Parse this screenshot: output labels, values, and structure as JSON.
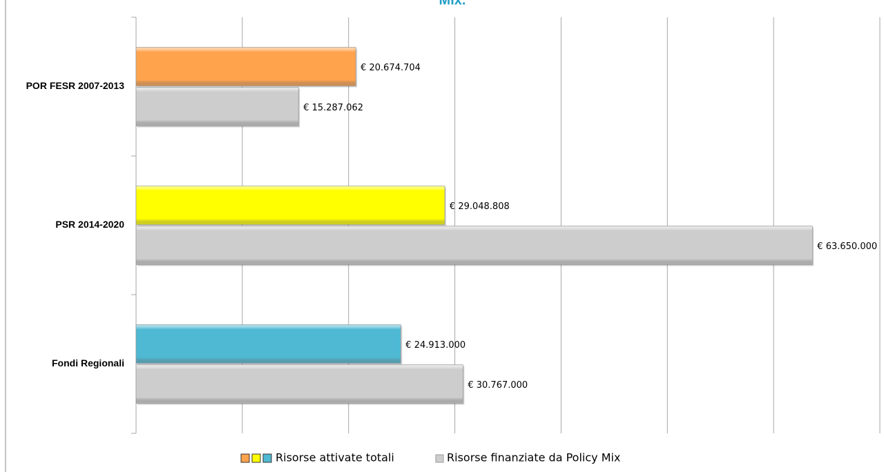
{
  "chart_data": {
    "type": "bar",
    "orientation": "horizontal",
    "title": "Mix.",
    "categories": [
      "POR FESR 2007-2013",
      "PSR 2014-2020",
      "Fondi Regionali"
    ],
    "series": [
      {
        "name": "Risorse attivate totali",
        "colors": [
          "#ffa34d",
          "#ffff00",
          "#4fb9d3"
        ],
        "values": [
          20674704,
          29048808,
          24913000
        ],
        "value_labels": [
          "€ 20.674.704",
          "€ 29.048.808",
          "€ 24.913.000"
        ]
      },
      {
        "name": "Risorse finanziate da Policy Mix",
        "color": "#cdcdcd",
        "values": [
          15287062,
          63650000,
          30767000
        ],
        "value_labels": [
          "€ 15.287.062",
          "€ 63.650.000",
          "€ 30.767.000"
        ]
      }
    ],
    "xlim": [
      0,
      70000000
    ],
    "xticks": [
      0,
      10000000,
      20000000,
      30000000,
      40000000,
      50000000,
      60000000,
      70000000
    ],
    "grid": true,
    "legend": "bottom"
  }
}
